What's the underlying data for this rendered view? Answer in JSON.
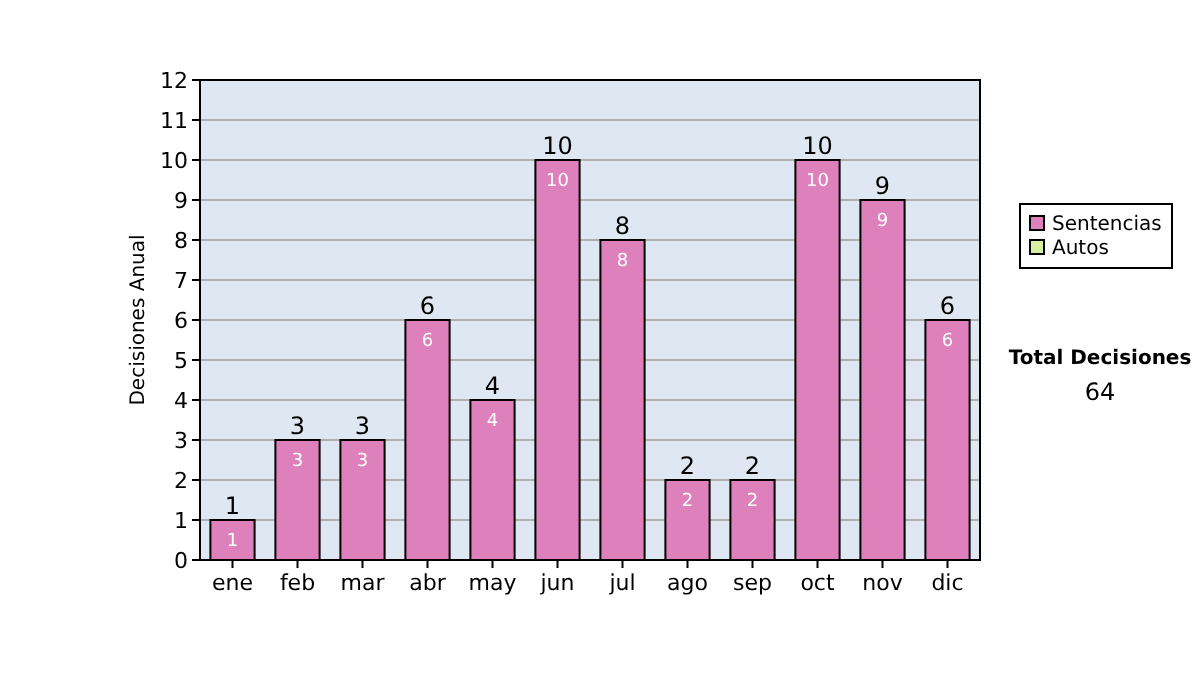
{
  "chart_data": {
    "type": "bar",
    "stacked": true,
    "ylabel": "Decisiones Anual",
    "categories": [
      "ene",
      "feb",
      "mar",
      "abr",
      "may",
      "jun",
      "jul",
      "ago",
      "sep",
      "oct",
      "nov",
      "dic"
    ],
    "series": [
      {
        "name": "Sentencias",
        "color": "#dd80bb",
        "values": [
          1,
          3,
          3,
          6,
          4,
          10,
          8,
          2,
          2,
          10,
          9,
          6
        ]
      },
      {
        "name": "Autos",
        "color": "#d8f0a0",
        "values": [
          null,
          null,
          null,
          null,
          null,
          null,
          null,
          null,
          null,
          null,
          null,
          null
        ]
      }
    ],
    "totals": [
      "1",
      "3",
      "3",
      "6",
      "4",
      "10",
      "8",
      "2",
      "2",
      "10",
      "9",
      "6"
    ],
    "data_labels": true,
    "ylim": [
      0,
      12
    ],
    "yticks": [
      0,
      1,
      2,
      3,
      4,
      5,
      6,
      7,
      8,
      9,
      10,
      11,
      12
    ],
    "grid": "y",
    "legend": "right",
    "annotations": [
      "Total Decisiones",
      "64"
    ]
  }
}
